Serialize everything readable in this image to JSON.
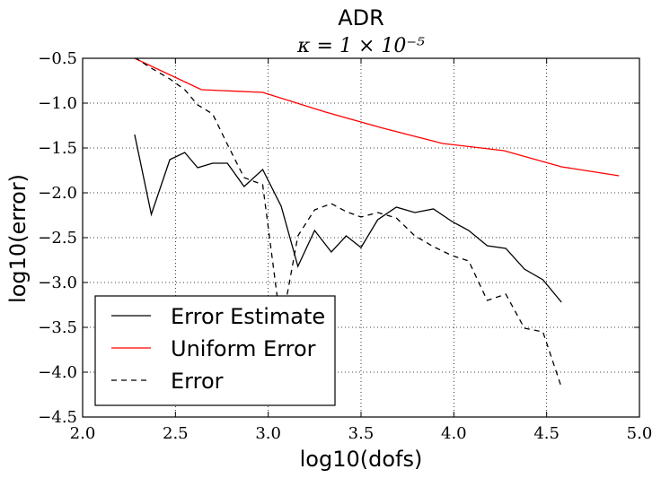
{
  "chart_data": {
    "type": "line",
    "title": "ADR",
    "subtitle": "κ = 1 × 10⁻⁵",
    "xlabel": "log10(dofs)",
    "ylabel": "log10(error)",
    "xlim": [
      2.0,
      5.0
    ],
    "ylim": [
      -4.5,
      -0.5
    ],
    "xticks": [
      2.0,
      2.5,
      3.0,
      3.5,
      4.0,
      4.5,
      5.0
    ],
    "yticks": [
      -0.5,
      -1.0,
      -1.5,
      -2.0,
      -2.5,
      -3.0,
      -3.5,
      -4.0,
      -4.5
    ],
    "xtick_labels": [
      "2.0",
      "2.5",
      "3.0",
      "3.5",
      "4.0",
      "4.5",
      "5.0"
    ],
    "ytick_labels": [
      "−0.5",
      "−1.0",
      "−1.5",
      "−2.0",
      "−2.5",
      "−3.0",
      "−3.5",
      "−4.0",
      "−4.5"
    ],
    "grid": true,
    "legend_position": "lower-left",
    "series": [
      {
        "name": "Error Estimate",
        "color": "#000000",
        "style": "solid",
        "x": [
          2.28,
          2.37,
          2.47,
          2.55,
          2.62,
          2.7,
          2.78,
          2.87,
          2.97,
          3.07,
          3.16,
          3.25,
          3.34,
          3.42,
          3.5,
          3.59,
          3.69,
          3.79,
          3.89,
          3.99,
          4.08,
          4.18,
          4.28,
          4.38,
          4.48,
          4.58
        ],
        "y": [
          -1.35,
          -2.24,
          -1.63,
          -1.55,
          -1.72,
          -1.67,
          -1.67,
          -1.93,
          -1.74,
          -2.15,
          -2.82,
          -2.42,
          -2.66,
          -2.48,
          -2.61,
          -2.3,
          -2.16,
          -2.22,
          -2.18,
          -2.32,
          -2.42,
          -2.59,
          -2.62,
          -2.85,
          -2.97,
          -3.22
        ]
      },
      {
        "name": "Uniform Error",
        "color": "#ff0000",
        "style": "solid",
        "x": [
          2.28,
          2.64,
          2.97,
          3.31,
          3.62,
          3.94,
          4.27,
          4.58,
          4.89
        ],
        "y": [
          -0.5,
          -0.85,
          -0.88,
          -1.1,
          -1.28,
          -1.45,
          -1.53,
          -1.71,
          -1.81
        ],
        "visible_from_x": 2.28
      },
      {
        "name": "Error",
        "color": "#000000",
        "style": "dashed",
        "x": [
          2.28,
          2.37,
          2.47,
          2.55,
          2.62,
          2.7,
          2.78,
          2.87,
          2.97,
          3.07,
          3.16,
          3.25,
          3.34,
          3.42,
          3.5,
          3.59,
          3.69,
          3.79,
          3.89,
          3.99,
          4.08,
          4.18,
          4.28,
          4.38,
          4.48,
          4.58
        ],
        "y": [
          -0.49,
          -0.61,
          -0.73,
          -0.85,
          -1.02,
          -1.12,
          -1.46,
          -1.83,
          -1.91,
          -3.5,
          -2.48,
          -2.19,
          -2.12,
          -2.21,
          -2.27,
          -2.22,
          -2.28,
          -2.48,
          -2.6,
          -2.7,
          -2.76,
          -3.2,
          -3.13,
          -3.51,
          -3.55,
          -4.17
        ]
      }
    ]
  }
}
